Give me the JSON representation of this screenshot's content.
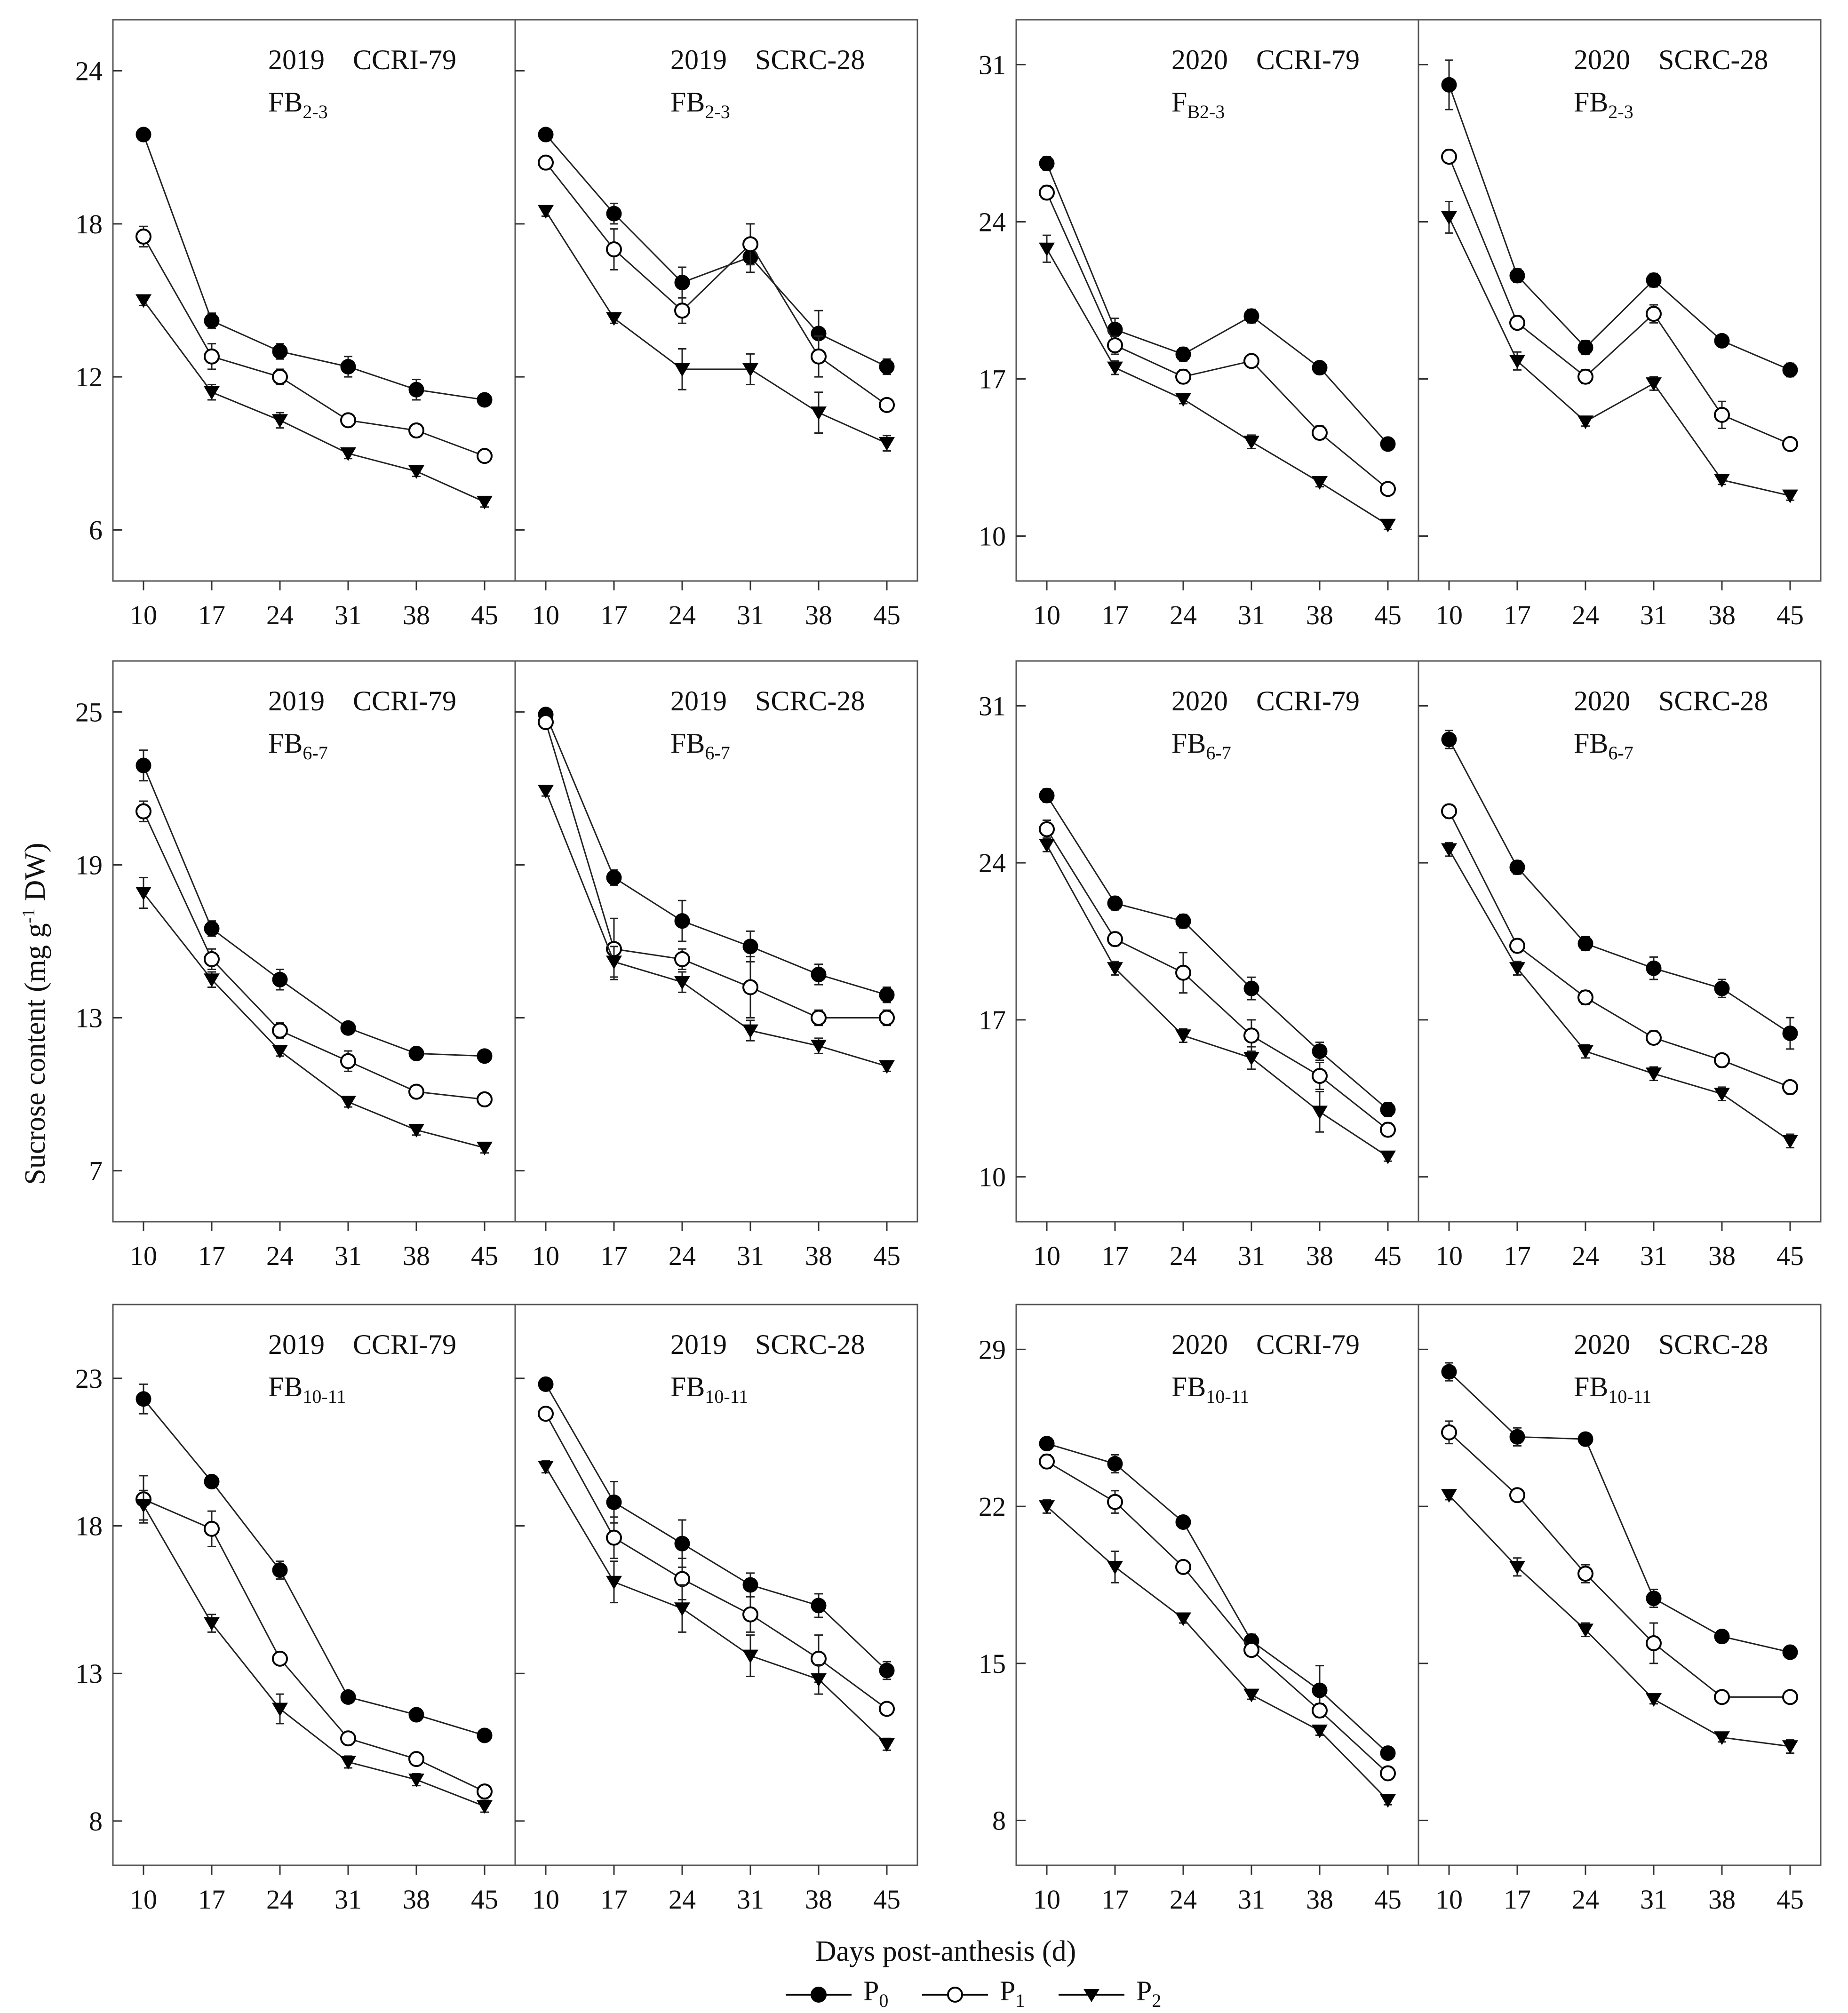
{
  "figure": {
    "ylabel": "Sucrose content (mg g",
    "ylabel_sup": "-1",
    "ylabel_end": " DW)",
    "xlabel": "Days post-anthesis (d)",
    "series_styles": {
      "P0": {
        "marker": "filled-circle",
        "color": "#000000"
      },
      "P1": {
        "marker": "open-circle",
        "color": "#000000"
      },
      "P2": {
        "marker": "filled-triangle-down",
        "color": "#000000"
      }
    },
    "legend": [
      {
        "key": "P0",
        "base": "P",
        "sub": "0"
      },
      {
        "key": "P1",
        "base": "P",
        "sub": "1"
      },
      {
        "key": "P2",
        "base": "P",
        "sub": "2"
      }
    ]
  },
  "chart_data": [
    {
      "type": "line",
      "year": "2019",
      "cultivar": "CCRI-79",
      "label_base": "FB",
      "label_sub": "2-3",
      "x": [
        10,
        17,
        24,
        31,
        38,
        45
      ],
      "xlabel": "Days post-anthesis (d)",
      "ylabel": "Sucrose content (mg g-1 DW)",
      "ylim": [
        4,
        26
      ],
      "yticks": [
        6,
        12,
        18,
        24
      ],
      "series": [
        {
          "name": "P0",
          "values": [
            21.5,
            14.2,
            13.0,
            12.4,
            11.5,
            11.1
          ],
          "err": [
            0.2,
            0.3,
            0.3,
            0.4,
            0.4,
            0.2
          ]
        },
        {
          "name": "P1",
          "values": [
            17.5,
            12.8,
            12.0,
            10.3,
            9.9,
            8.9
          ],
          "err": [
            0.4,
            0.5,
            0.3,
            0.2,
            0.2,
            0.2
          ]
        },
        {
          "name": "P2",
          "values": [
            15.0,
            11.4,
            10.3,
            9.0,
            8.3,
            7.1
          ],
          "err": [
            0.2,
            0.3,
            0.3,
            0.2,
            0.2,
            0.2
          ]
        }
      ]
    },
    {
      "type": "line",
      "year": "2019",
      "cultivar": "SCRC-28",
      "label_base": "FB",
      "label_sub": "2-3",
      "x": [
        10,
        17,
        24,
        31,
        38,
        45
      ],
      "xlabel": "Days post-anthesis (d)",
      "ylabel": "Sucrose content (mg g-1 DW)",
      "ylim": [
        4,
        26
      ],
      "yticks": [
        6,
        12,
        18,
        24
      ],
      "series": [
        {
          "name": "P0",
          "values": [
            21.5,
            18.4,
            15.7,
            16.7,
            13.7,
            12.4
          ],
          "err": [
            0.2,
            0.4,
            0.6,
            0.6,
            0.9,
            0.3
          ]
        },
        {
          "name": "P1",
          "values": [
            20.4,
            17.0,
            14.6,
            17.2,
            12.8,
            10.9
          ],
          "err": [
            0.2,
            0.8,
            0.5,
            0.8,
            0.8,
            0.2
          ]
        },
        {
          "name": "P2",
          "values": [
            18.5,
            14.3,
            12.3,
            12.3,
            10.6,
            9.4
          ],
          "err": [
            0.2,
            0.2,
            0.8,
            0.6,
            0.8,
            0.3
          ]
        }
      ]
    },
    {
      "type": "line",
      "year": "2020",
      "cultivar": "CCRI-79",
      "label_base": "F",
      "label_sub": "B2-3",
      "x": [
        10,
        17,
        24,
        31,
        38,
        45
      ],
      "xlabel": "Days post-anthesis (d)",
      "ylabel": "Sucrose content (mg g-1 DW)",
      "ylim": [
        8,
        33
      ],
      "yticks": [
        10,
        17,
        24,
        31
      ],
      "series": [
        {
          "name": "P0",
          "values": [
            26.6,
            19.2,
            18.1,
            19.8,
            17.5,
            14.1
          ],
          "err": [
            0.3,
            0.5,
            0.3,
            0.3,
            0.2,
            0.2
          ]
        },
        {
          "name": "P1",
          "values": [
            25.3,
            18.5,
            17.1,
            17.8,
            14.6,
            12.1
          ],
          "err": [
            0.3,
            0.4,
            0.3,
            0.2,
            0.3,
            0.2
          ]
        },
        {
          "name": "P2",
          "values": [
            22.8,
            17.5,
            16.1,
            14.2,
            12.4,
            10.5
          ],
          "err": [
            0.6,
            0.3,
            0.2,
            0.3,
            0.2,
            0.2
          ]
        }
      ]
    },
    {
      "type": "line",
      "year": "2020",
      "cultivar": "SCRC-28",
      "label_base": "FB",
      "label_sub": "2-3",
      "x": [
        10,
        17,
        24,
        31,
        38,
        45
      ],
      "xlabel": "Days post-anthesis (d)",
      "ylabel": "Sucrose content (mg g-1 DW)",
      "ylim": [
        8,
        33
      ],
      "yticks": [
        10,
        17,
        24,
        31
      ],
      "series": [
        {
          "name": "P0",
          "values": [
            30.1,
            21.6,
            18.4,
            21.4,
            18.7,
            17.4
          ],
          "err": [
            1.1,
            0.3,
            0.3,
            0.3,
            0.2,
            0.3
          ]
        },
        {
          "name": "P1",
          "values": [
            26.9,
            19.5,
            17.1,
            19.9,
            15.4,
            14.1
          ],
          "err": [
            0.3,
            0.3,
            0.3,
            0.4,
            0.6,
            0.2
          ]
        },
        {
          "name": "P2",
          "values": [
            24.2,
            17.8,
            15.1,
            16.8,
            12.5,
            11.8
          ],
          "err": [
            0.7,
            0.4,
            0.2,
            0.3,
            0.2,
            0.2
          ]
        }
      ]
    },
    {
      "type": "line",
      "year": "2019",
      "cultivar": "CCRI-79",
      "label_base": "FB",
      "label_sub": "6-7",
      "x": [
        10,
        17,
        24,
        31,
        38,
        45
      ],
      "xlabel": "Days post-anthesis (d)",
      "ylabel": "Sucrose content (mg g-1 DW)",
      "ylim": [
        5,
        27
      ],
      "yticks": [
        7,
        13,
        19,
        25
      ],
      "series": [
        {
          "name": "P0",
          "values": [
            22.9,
            16.5,
            14.5,
            12.6,
            11.6,
            11.5
          ],
          "err": [
            0.6,
            0.3,
            0.4,
            0.2,
            0.2,
            0.2
          ]
        },
        {
          "name": "P1",
          "values": [
            21.1,
            15.3,
            12.5,
            11.3,
            10.1,
            9.8
          ],
          "err": [
            0.4,
            0.4,
            0.3,
            0.4,
            0.2,
            0.2
          ]
        },
        {
          "name": "P2",
          "values": [
            17.9,
            14.5,
            11.7,
            9.7,
            8.6,
            7.9
          ],
          "err": [
            0.6,
            0.3,
            0.2,
            0.2,
            0.2,
            0.2
          ]
        }
      ]
    },
    {
      "type": "line",
      "year": "2019",
      "cultivar": "SCRC-28",
      "label_base": "FB",
      "label_sub": "6-7",
      "x": [
        10,
        17,
        24,
        31,
        38,
        45
      ],
      "xlabel": "Days post-anthesis (d)",
      "ylabel": "Sucrose content (mg g-1 DW)",
      "ylim": [
        5,
        27
      ],
      "yticks": [
        7,
        13,
        19,
        25
      ],
      "series": [
        {
          "name": "P0",
          "values": [
            24.9,
            18.5,
            16.8,
            15.8,
            14.7,
            13.9
          ],
          "err": [
            0.2,
            0.3,
            0.8,
            0.6,
            0.4,
            0.3
          ]
        },
        {
          "name": "P1",
          "values": [
            24.6,
            15.7,
            15.3,
            14.2,
            13.0,
            13.0
          ],
          "err": [
            0.2,
            1.2,
            0.4,
            1.2,
            0.3,
            0.3
          ]
        },
        {
          "name": "P2",
          "values": [
            21.9,
            15.2,
            14.4,
            12.5,
            11.9,
            11.1
          ],
          "err": [
            0.2,
            0.6,
            0.4,
            0.4,
            0.3,
            0.2
          ]
        }
      ]
    },
    {
      "type": "line",
      "year": "2020",
      "cultivar": "CCRI-79",
      "label_base": "FB",
      "label_sub": "6-7",
      "x": [
        10,
        17,
        24,
        31,
        38,
        45
      ],
      "xlabel": "Days post-anthesis (d)",
      "ylabel": "Sucrose content (mg g-1 DW)",
      "ylim": [
        8,
        33
      ],
      "yticks": [
        10,
        17,
        24,
        31
      ],
      "series": [
        {
          "name": "P0",
          "values": [
            27.0,
            22.2,
            21.4,
            18.4,
            15.6,
            13.0
          ],
          "err": [
            0.3,
            0.3,
            0.3,
            0.5,
            0.4,
            0.3
          ]
        },
        {
          "name": "P1",
          "values": [
            25.5,
            20.6,
            19.1,
            16.3,
            14.5,
            12.1
          ],
          "err": [
            0.4,
            0.3,
            0.9,
            0.7,
            0.6,
            0.3
          ]
        },
        {
          "name": "P2",
          "values": [
            24.8,
            19.3,
            16.3,
            15.3,
            12.9,
            10.9
          ],
          "err": [
            0.3,
            0.3,
            0.3,
            0.5,
            0.9,
            0.2
          ]
        }
      ]
    },
    {
      "type": "line",
      "year": "2020",
      "cultivar": "SCRC-28",
      "label_base": "FB",
      "label_sub": "6-7",
      "x": [
        10,
        17,
        24,
        31,
        38,
        45
      ],
      "xlabel": "Days post-anthesis (d)",
      "ylabel": "Sucrose content (mg g-1 DW)",
      "ylim": [
        8,
        33
      ],
      "yticks": [
        10,
        17,
        24,
        31
      ],
      "series": [
        {
          "name": "P0",
          "values": [
            29.5,
            23.8,
            20.4,
            19.3,
            18.4,
            16.4
          ],
          "err": [
            0.4,
            0.3,
            0.3,
            0.5,
            0.4,
            0.7
          ]
        },
        {
          "name": "P1",
          "values": [
            26.3,
            20.3,
            18.0,
            16.2,
            15.2,
            14.0
          ],
          "err": [
            0.3,
            0.3,
            0.3,
            0.3,
            0.3,
            0.3
          ]
        },
        {
          "name": "P2",
          "values": [
            24.6,
            19.3,
            15.6,
            14.6,
            13.7,
            11.6
          ],
          "err": [
            0.3,
            0.3,
            0.3,
            0.3,
            0.3,
            0.3
          ]
        }
      ]
    },
    {
      "type": "line",
      "year": "2019",
      "cultivar": "CCRI-79",
      "label_base": "FB",
      "label_sub": "10-11",
      "x": [
        10,
        17,
        24,
        31,
        38,
        45
      ],
      "xlabel": "Days post-anthesis (d)",
      "ylabel": "Sucrose content (mg g-1 DW)",
      "ylim": [
        6.5,
        25.5
      ],
      "yticks": [
        8,
        13,
        18,
        23
      ],
      "series": [
        {
          "name": "P0",
          "values": [
            22.3,
            19.5,
            16.5,
            12.2,
            11.6,
            10.9
          ],
          "err": [
            0.5,
            0.2,
            0.3,
            0.2,
            0.2,
            0.2
          ]
        },
        {
          "name": "P1",
          "values": [
            18.9,
            17.9,
            13.5,
            10.8,
            10.1,
            9.0
          ],
          "err": [
            0.8,
            0.6,
            0.2,
            0.2,
            0.2,
            0.2
          ]
        },
        {
          "name": "P2",
          "values": [
            18.7,
            14.7,
            11.8,
            10.0,
            9.4,
            8.5
          ],
          "err": [
            0.5,
            0.3,
            0.5,
            0.2,
            0.2,
            0.2
          ]
        }
      ]
    },
    {
      "type": "line",
      "year": "2019",
      "cultivar": "SCRC-28",
      "label_base": "FB",
      "label_sub": "10-11",
      "x": [
        10,
        17,
        24,
        31,
        38,
        45
      ],
      "xlabel": "Days post-anthesis (d)",
      "ylabel": "Sucrose content (mg g-1 DW)",
      "ylim": [
        6.5,
        25.5
      ],
      "yticks": [
        8,
        13,
        18,
        23
      ],
      "series": [
        {
          "name": "P0",
          "values": [
            22.8,
            18.8,
            17.4,
            16.0,
            15.3,
            13.1
          ],
          "err": [
            0.2,
            0.7,
            0.8,
            0.4,
            0.4,
            0.3
          ]
        },
        {
          "name": "P1",
          "values": [
            21.8,
            17.6,
            16.2,
            15.0,
            13.5,
            11.8
          ],
          "err": [
            0.2,
            0.7,
            0.7,
            0.6,
            0.8,
            0.2
          ]
        },
        {
          "name": "P2",
          "values": [
            20.0,
            16.1,
            15.2,
            13.6,
            12.8,
            10.6
          ],
          "err": [
            0.2,
            0.7,
            0.8,
            0.7,
            0.5,
            0.2
          ]
        }
      ]
    },
    {
      "type": "line",
      "year": "2020",
      "cultivar": "CCRI-79",
      "label_base": "FB",
      "label_sub": "10-11",
      "x": [
        10,
        17,
        24,
        31,
        38,
        45
      ],
      "xlabel": "Days post-anthesis (d)",
      "ylabel": "Sucrose content (mg g-1 DW)",
      "ylim": [
        6,
        31
      ],
      "yticks": [
        8,
        15,
        22,
        29
      ],
      "series": [
        {
          "name": "P0",
          "values": [
            24.8,
            23.9,
            21.3,
            16.0,
            13.8,
            11.0
          ],
          "err": [
            0.2,
            0.4,
            0.2,
            0.3,
            1.1,
            0.2
          ]
        },
        {
          "name": "P1",
          "values": [
            24.0,
            22.2,
            19.3,
            15.6,
            12.9,
            10.1
          ],
          "err": [
            0.3,
            0.5,
            0.2,
            0.2,
            0.3,
            0.2
          ]
        },
        {
          "name": "P2",
          "values": [
            22.0,
            19.3,
            17.0,
            13.6,
            12.0,
            8.9
          ],
          "err": [
            0.3,
            0.7,
            0.2,
            0.2,
            0.2,
            0.2
          ]
        }
      ]
    },
    {
      "type": "line",
      "year": "2020",
      "cultivar": "SCRC-28",
      "label_base": "FB",
      "label_sub": "10-11",
      "x": [
        10,
        17,
        24,
        31,
        38,
        45
      ],
      "xlabel": "Days post-anthesis (d)",
      "ylabel": "Sucrose content (mg g-1 DW)",
      "ylim": [
        6,
        31
      ],
      "yticks": [
        8,
        15,
        22,
        29
      ],
      "series": [
        {
          "name": "P0",
          "values": [
            28.0,
            25.1,
            25.0,
            17.9,
            16.2,
            15.5
          ],
          "err": [
            0.4,
            0.4,
            0.2,
            0.4,
            0.2,
            0.2
          ]
        },
        {
          "name": "P1",
          "values": [
            25.3,
            22.5,
            19.0,
            15.9,
            13.5,
            13.5
          ],
          "err": [
            0.5,
            0.2,
            0.4,
            0.9,
            0.2,
            0.2
          ]
        },
        {
          "name": "P2",
          "values": [
            22.5,
            19.3,
            16.5,
            13.4,
            11.7,
            11.3
          ],
          "err": [
            0.2,
            0.4,
            0.3,
            0.2,
            0.2,
            0.3
          ]
        }
      ]
    }
  ]
}
